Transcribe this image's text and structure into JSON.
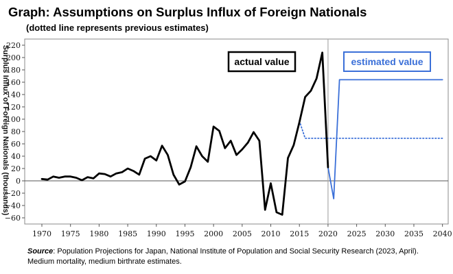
{
  "title": "Graph: Assumptions on Surplus Influx of Foreign Nationals",
  "subtitle": "(dotted line represents previous estimates)",
  "source": {
    "label": "Source",
    "text": ": Population Projections for Japan, National Institute of Population and Social Security Research (2023, April). Medium mortality, medium birthrate estimates."
  },
  "colors": {
    "actual": "#000000",
    "estimated": "#3a6fd8",
    "previous": "#3a6fd8",
    "divider": "#aaaaaa",
    "zero_line": "#555555"
  },
  "chart_data": {
    "type": "line",
    "ylabel": "Surplus Influx of Foreign Nationals (thousands)",
    "xlim": [
      1967,
      2041
    ],
    "ylim": [
      -70,
      230
    ],
    "x_ticks": [
      1970,
      1975,
      1980,
      1985,
      1990,
      1995,
      2000,
      2005,
      2010,
      2015,
      2020,
      2025,
      2030,
      2035,
      2040
    ],
    "y_ticks": [
      -60,
      -40,
      -20,
      0,
      20,
      40,
      60,
      80,
      100,
      120,
      140,
      160,
      180,
      200,
      220
    ],
    "divider_year": 2020,
    "annotations": [
      {
        "text": "actual value",
        "series": "actual"
      },
      {
        "text": "estimated value",
        "series": "estimated"
      }
    ],
    "series": [
      {
        "key": "actual",
        "style": "solid",
        "x": [
          1970,
          1971,
          1972,
          1973,
          1974,
          1975,
          1976,
          1977,
          1978,
          1979,
          1980,
          1981,
          1982,
          1983,
          1984,
          1985,
          1986,
          1987,
          1988,
          1989,
          1990,
          1991,
          1992,
          1993,
          1994,
          1995,
          1996,
          1997,
          1998,
          1999,
          2000,
          2001,
          2002,
          2003,
          2004,
          2005,
          2006,
          2007,
          2008,
          2009,
          2010,
          2011,
          2012,
          2013,
          2014,
          2015,
          2016,
          2017,
          2018,
          2019,
          2020
        ],
        "y": [
          3,
          2,
          7,
          5,
          7,
          7,
          5,
          1,
          6,
          4,
          12,
          11,
          7,
          12,
          14,
          20,
          16,
          10,
          36,
          40,
          33,
          57,
          42,
          10,
          -6,
          -1,
          22,
          56,
          40,
          31,
          88,
          81,
          53,
          65,
          42,
          51,
          62,
          79,
          65,
          -47,
          -4,
          -51,
          -55,
          37,
          58,
          95,
          136,
          146,
          166,
          208,
          22
        ]
      },
      {
        "key": "estimated",
        "style": "solid",
        "x": [
          2020,
          2021,
          2022,
          2040
        ],
        "y": [
          22,
          -29,
          164,
          164
        ]
      },
      {
        "key": "previous",
        "style": "dotted",
        "x": [
          2015,
          2016,
          2040
        ],
        "y": [
          97,
          69,
          69
        ]
      }
    ]
  }
}
